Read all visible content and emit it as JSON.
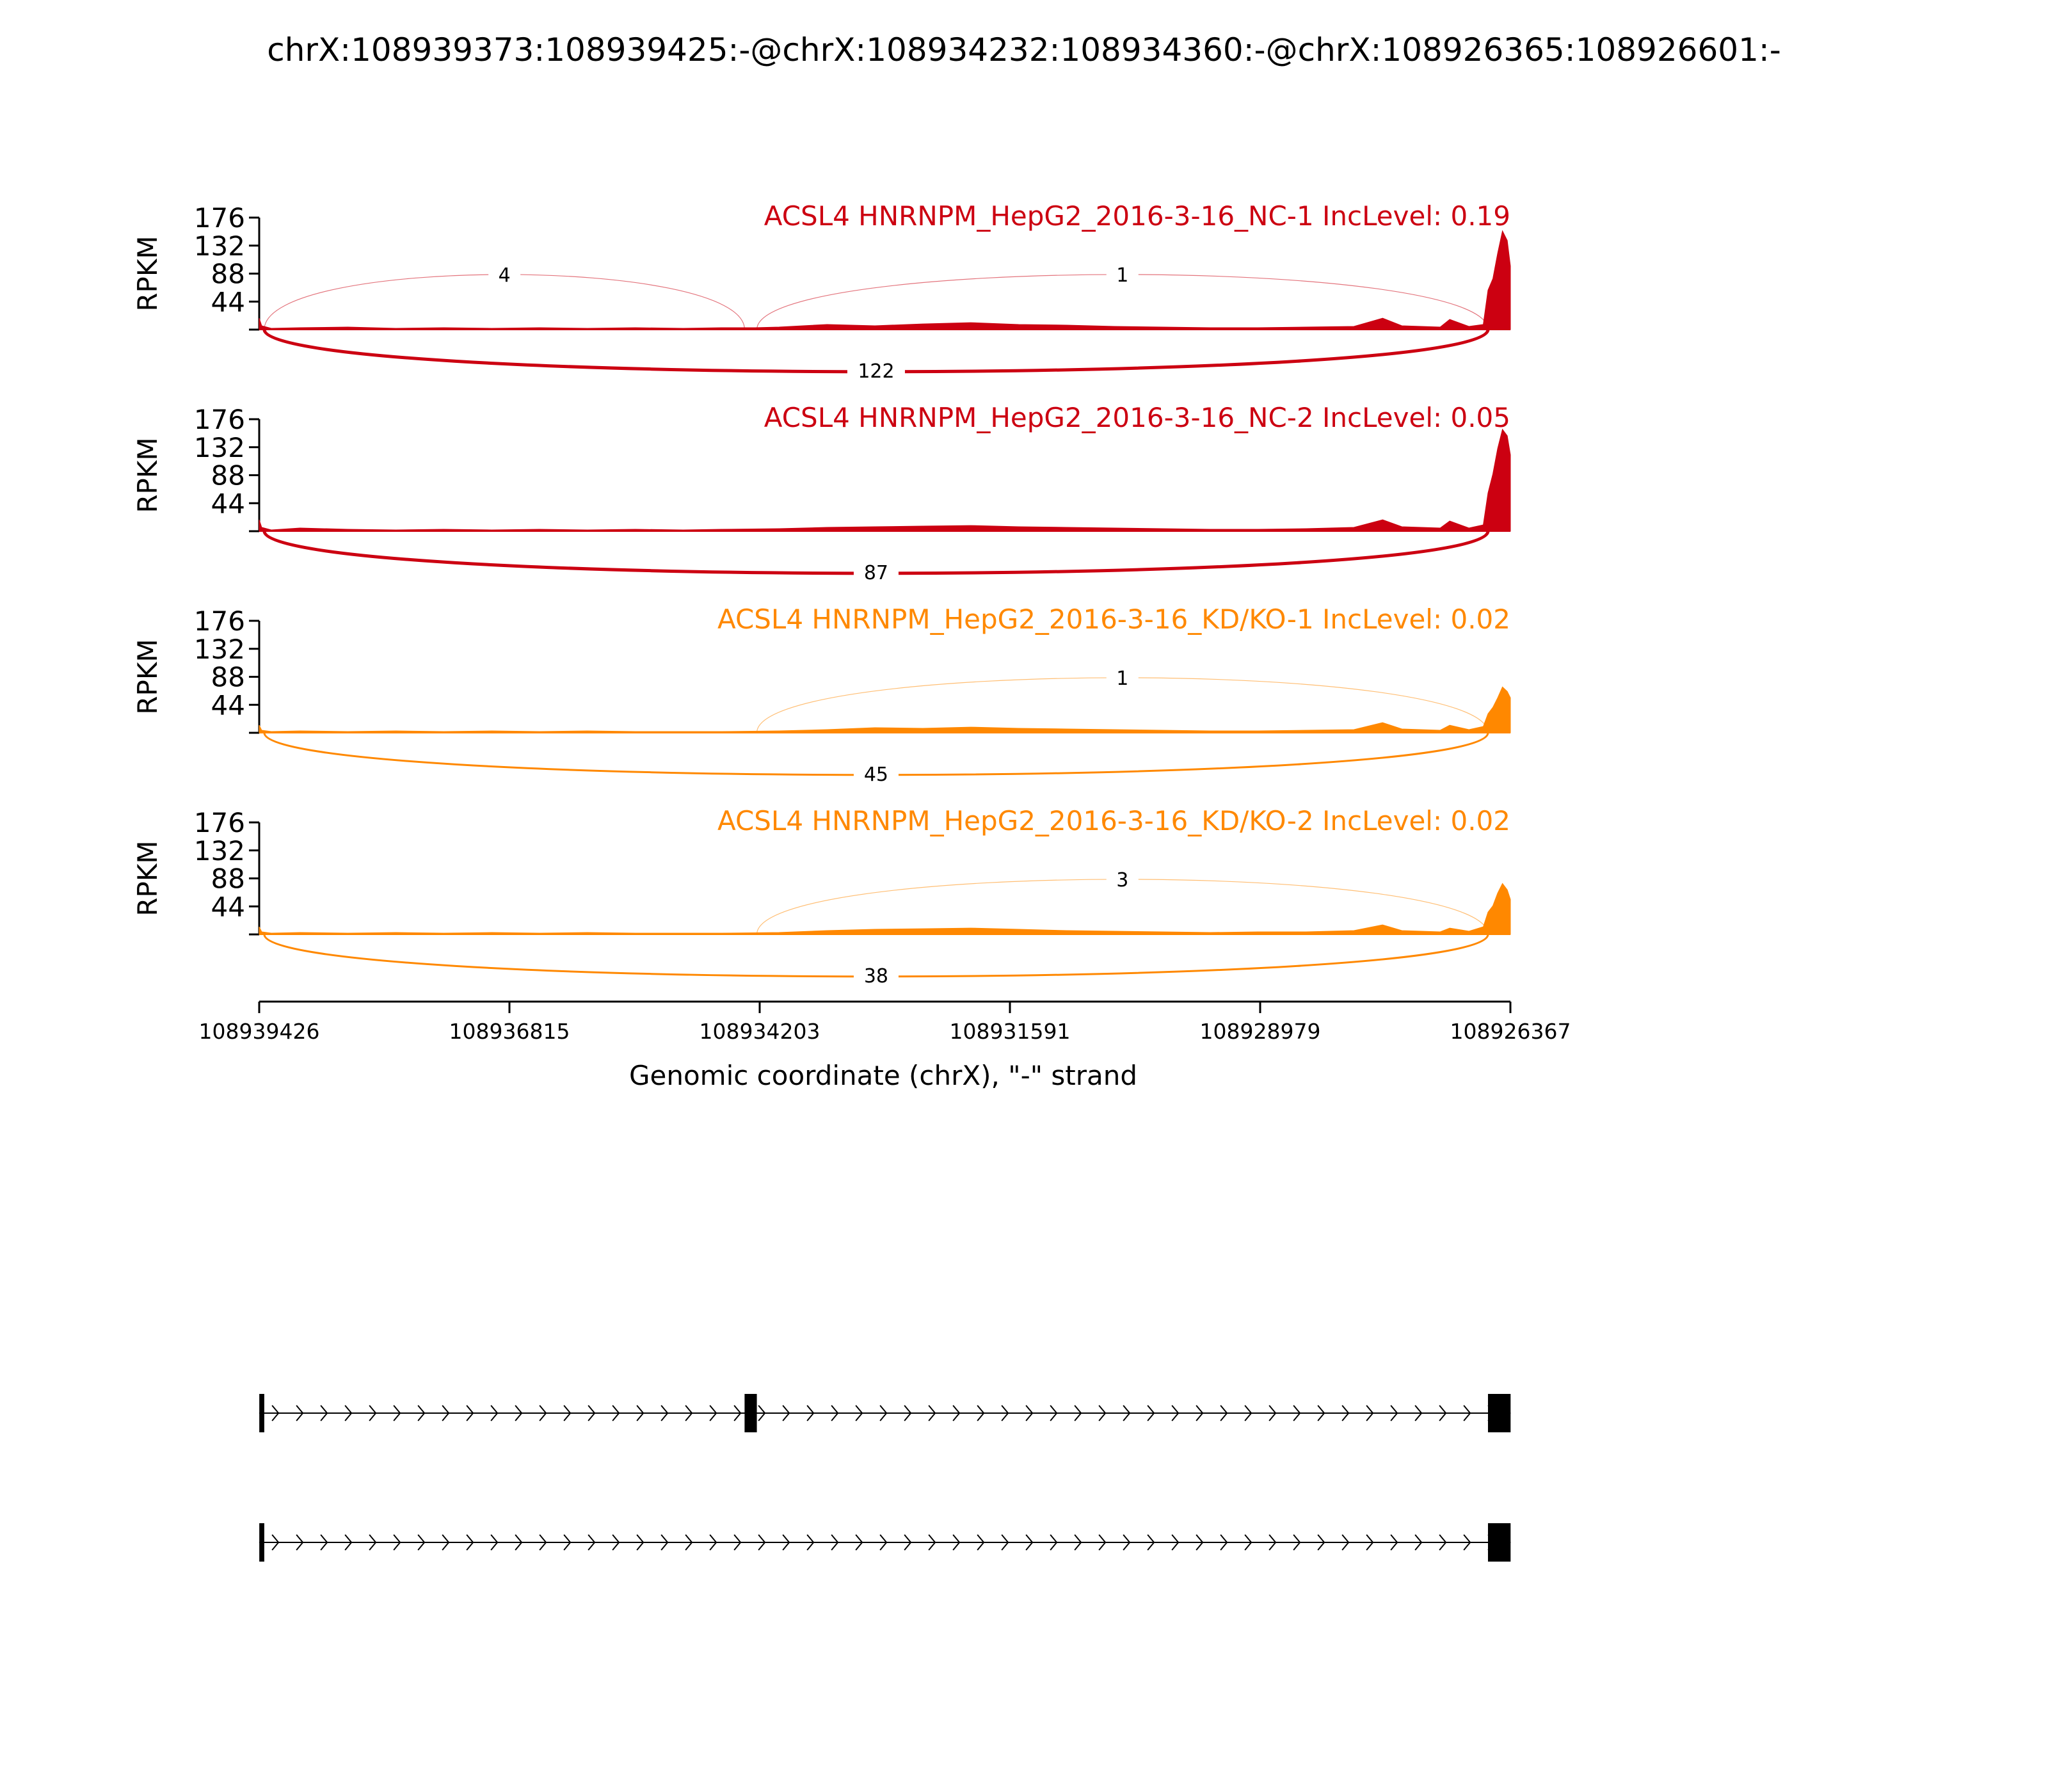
{
  "title": "chrX:108939373:108939425:-@chrX:108934232:108934360:-@chrX:108926365:108926601:-",
  "chart_data": {
    "type": "area",
    "ylabel": "RPKM",
    "y_ticks": [
      44,
      88,
      132,
      176
    ],
    "ylim": [
      0,
      176
    ],
    "xlabel": "Genomic coordinate (chrX), \"-\" strand",
    "x_ticks": [
      "108939426",
      "108936815",
      "108934203",
      "108931591",
      "108928979",
      "108926367"
    ],
    "xlim": [
      108939426,
      108926367
    ],
    "exons": [
      {
        "start": 108939425,
        "end": 108939373
      },
      {
        "start": 108934360,
        "end": 108934232
      },
      {
        "start": 108926601,
        "end": 108926365
      }
    ],
    "tracks": [
      {
        "label": "ACSL4 HNRNPM_HepG2_2016-3-16_NC-1 IncLevel: 0.19",
        "color": "#cc0011",
        "coverage": [
          [
            108939426,
            18
          ],
          [
            108939400,
            6
          ],
          [
            108939300,
            2
          ],
          [
            108939000,
            3
          ],
          [
            108938500,
            4
          ],
          [
            108938000,
            2
          ],
          [
            108937500,
            3
          ],
          [
            108937000,
            2
          ],
          [
            108936500,
            3
          ],
          [
            108936000,
            2
          ],
          [
            108935500,
            3
          ],
          [
            108935000,
            2
          ],
          [
            108934600,
            3
          ],
          [
            108934250,
            3
          ],
          [
            108934000,
            4
          ],
          [
            108933500,
            8
          ],
          [
            108933000,
            6
          ],
          [
            108932500,
            9
          ],
          [
            108932000,
            11
          ],
          [
            108931500,
            8
          ],
          [
            108931000,
            7
          ],
          [
            108930500,
            5
          ],
          [
            108930000,
            4
          ],
          [
            108929500,
            3
          ],
          [
            108929000,
            3
          ],
          [
            108928500,
            4
          ],
          [
            108928000,
            5
          ],
          [
            108927700,
            18
          ],
          [
            108927500,
            6
          ],
          [
            108927100,
            4
          ],
          [
            108927000,
            16
          ],
          [
            108926800,
            5
          ],
          [
            108926650,
            8
          ],
          [
            108926601,
            62
          ],
          [
            108926550,
            80
          ],
          [
            108926500,
            120
          ],
          [
            108926450,
            155
          ],
          [
            108926400,
            140
          ],
          [
            108926367,
            100
          ]
        ],
        "junctions": [
          {
            "from": 108939373,
            "to": 108934360,
            "count": "4",
            "side": "above"
          },
          {
            "from": 108934232,
            "to": 108926601,
            "count": "1",
            "side": "above"
          },
          {
            "from": 108939373,
            "to": 108926601,
            "count": "122",
            "side": "below"
          }
        ]
      },
      {
        "label": "ACSL4 HNRNPM_HepG2_2016-3-16_NC-2 IncLevel: 0.05",
        "color": "#cc0011",
        "coverage": [
          [
            108939426,
            18
          ],
          [
            108939400,
            6
          ],
          [
            108939300,
            2
          ],
          [
            108939000,
            5
          ],
          [
            108938500,
            3
          ],
          [
            108938000,
            2
          ],
          [
            108937500,
            3
          ],
          [
            108937000,
            2
          ],
          [
            108936500,
            3
          ],
          [
            108936000,
            2
          ],
          [
            108935500,
            3
          ],
          [
            108935000,
            2
          ],
          [
            108934600,
            3
          ],
          [
            108934000,
            4
          ],
          [
            108933500,
            6
          ],
          [
            108933000,
            7
          ],
          [
            108932500,
            8
          ],
          [
            108932000,
            9
          ],
          [
            108931500,
            7
          ],
          [
            108931000,
            6
          ],
          [
            108930500,
            5
          ],
          [
            108930000,
            4
          ],
          [
            108929500,
            3
          ],
          [
            108929000,
            3
          ],
          [
            108928500,
            4
          ],
          [
            108928000,
            6
          ],
          [
            108927700,
            18
          ],
          [
            108927500,
            7
          ],
          [
            108927100,
            5
          ],
          [
            108927000,
            16
          ],
          [
            108926800,
            5
          ],
          [
            108926650,
            10
          ],
          [
            108926601,
            60
          ],
          [
            108926550,
            90
          ],
          [
            108926500,
            130
          ],
          [
            108926450,
            160
          ],
          [
            108926400,
            150
          ],
          [
            108926367,
            120
          ]
        ],
        "junctions": [
          {
            "from": 108939373,
            "to": 108926601,
            "count": "87",
            "side": "below"
          }
        ]
      },
      {
        "label": "ACSL4 HNRNPM_HepG2_2016-3-16_KD/KO-1 IncLevel: 0.02",
        "color": "#ff8800",
        "coverage": [
          [
            108939426,
            12
          ],
          [
            108939400,
            4
          ],
          [
            108939300,
            2
          ],
          [
            108939000,
            3
          ],
          [
            108938500,
            2
          ],
          [
            108938000,
            3
          ],
          [
            108937500,
            2
          ],
          [
            108937000,
            3
          ],
          [
            108936500,
            2
          ],
          [
            108936000,
            3
          ],
          [
            108935500,
            2
          ],
          [
            108935000,
            2
          ],
          [
            108934600,
            2
          ],
          [
            108934000,
            3
          ],
          [
            108933500,
            5
          ],
          [
            108933000,
            8
          ],
          [
            108932500,
            7
          ],
          [
            108932000,
            9
          ],
          [
            108931500,
            7
          ],
          [
            108931000,
            6
          ],
          [
            108930500,
            5
          ],
          [
            108930000,
            4
          ],
          [
            108929500,
            3
          ],
          [
            108929000,
            3
          ],
          [
            108928500,
            4
          ],
          [
            108928000,
            5
          ],
          [
            108927700,
            16
          ],
          [
            108927500,
            6
          ],
          [
            108927100,
            4
          ],
          [
            108927000,
            12
          ],
          [
            108926800,
            5
          ],
          [
            108926650,
            10
          ],
          [
            108926601,
            30
          ],
          [
            108926550,
            40
          ],
          [
            108926500,
            55
          ],
          [
            108926450,
            72
          ],
          [
            108926400,
            65
          ],
          [
            108926367,
            55
          ]
        ],
        "junctions": [
          {
            "from": 108934232,
            "to": 108926601,
            "count": "1",
            "side": "above"
          },
          {
            "from": 108939373,
            "to": 108926601,
            "count": "45",
            "side": "below"
          }
        ]
      },
      {
        "label": "ACSL4 HNRNPM_HepG2_2016-3-16_KD/KO-2 IncLevel: 0.02",
        "color": "#ff8800",
        "coverage": [
          [
            108939426,
            12
          ],
          [
            108939400,
            4
          ],
          [
            108939300,
            2
          ],
          [
            108939000,
            3
          ],
          [
            108938500,
            2
          ],
          [
            108938000,
            3
          ],
          [
            108937500,
            2
          ],
          [
            108937000,
            3
          ],
          [
            108936500,
            2
          ],
          [
            108936000,
            3
          ],
          [
            108935500,
            2
          ],
          [
            108935000,
            2
          ],
          [
            108934600,
            2
          ],
          [
            108934000,
            3
          ],
          [
            108933500,
            6
          ],
          [
            108933000,
            8
          ],
          [
            108932500,
            9
          ],
          [
            108932000,
            10
          ],
          [
            108931500,
            8
          ],
          [
            108931000,
            6
          ],
          [
            108930500,
            5
          ],
          [
            108930000,
            4
          ],
          [
            108929500,
            3
          ],
          [
            108929000,
            4
          ],
          [
            108928500,
            4
          ],
          [
            108928000,
            6
          ],
          [
            108927700,
            15
          ],
          [
            108927500,
            6
          ],
          [
            108927100,
            4
          ],
          [
            108927000,
            10
          ],
          [
            108926800,
            5
          ],
          [
            108926650,
            12
          ],
          [
            108926601,
            35
          ],
          [
            108926550,
            45
          ],
          [
            108926500,
            65
          ],
          [
            108926450,
            80
          ],
          [
            108926400,
            70
          ],
          [
            108926367,
            55
          ]
        ],
        "junctions": [
          {
            "from": 108934232,
            "to": 108926601,
            "count": "3",
            "side": "above"
          },
          {
            "from": 108939373,
            "to": 108926601,
            "count": "38",
            "side": "below"
          }
        ]
      }
    ],
    "isoforms": [
      {
        "exons": [
          0,
          1,
          2
        ]
      },
      {
        "exons": [
          0,
          2
        ]
      }
    ]
  }
}
